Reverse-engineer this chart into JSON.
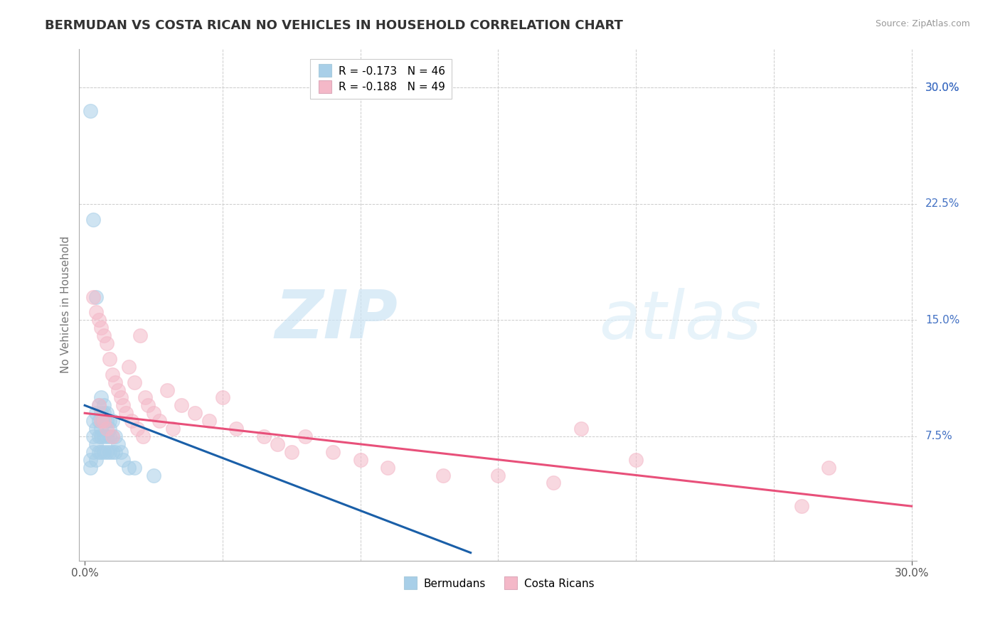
{
  "title": "BERMUDAN VS COSTA RICAN NO VEHICLES IN HOUSEHOLD CORRELATION CHART",
  "source": "Source: ZipAtlas.com",
  "ylabel": "No Vehicles in Household",
  "right_yticks": [
    "30.0%",
    "22.5%",
    "15.0%",
    "7.5%"
  ],
  "right_ytick_vals": [
    0.3,
    0.225,
    0.15,
    0.075
  ],
  "xlim": [
    0.0,
    0.3
  ],
  "ylim": [
    0.0,
    0.32
  ],
  "legend_r_blue": "R = -0.173",
  "legend_n_blue": "N = 46",
  "legend_r_pink": "R = -0.188",
  "legend_n_pink": "N = 49",
  "legend_label_blue": "Bermudans",
  "legend_label_pink": "Costa Ricans",
  "color_blue": "#a8cfe8",
  "color_pink": "#f4b8c8",
  "color_blue_line": "#1a5fa8",
  "color_pink_line": "#e8507a",
  "watermark_zip": "ZIP",
  "watermark_atlas": "atlas",
  "blue_line_x0": 0.0,
  "blue_line_y0": 0.095,
  "blue_line_x1": 0.14,
  "blue_line_y1": 0.0,
  "pink_line_x0": 0.0,
  "pink_line_y0": 0.09,
  "pink_line_x1": 0.3,
  "pink_line_y1": 0.03,
  "blue_scatter_x": [
    0.002,
    0.002,
    0.002,
    0.003,
    0.003,
    0.003,
    0.003,
    0.004,
    0.004,
    0.004,
    0.004,
    0.004,
    0.005,
    0.005,
    0.005,
    0.005,
    0.006,
    0.006,
    0.006,
    0.006,
    0.006,
    0.006,
    0.007,
    0.007,
    0.007,
    0.007,
    0.007,
    0.008,
    0.008,
    0.008,
    0.008,
    0.009,
    0.009,
    0.009,
    0.009,
    0.01,
    0.01,
    0.01,
    0.011,
    0.011,
    0.012,
    0.013,
    0.014,
    0.016,
    0.018,
    0.025
  ],
  "blue_scatter_y": [
    0.285,
    0.06,
    0.055,
    0.215,
    0.085,
    0.075,
    0.065,
    0.165,
    0.09,
    0.08,
    0.07,
    0.06,
    0.095,
    0.085,
    0.075,
    0.065,
    0.1,
    0.09,
    0.085,
    0.08,
    0.075,
    0.065,
    0.095,
    0.09,
    0.085,
    0.075,
    0.065,
    0.09,
    0.085,
    0.075,
    0.065,
    0.085,
    0.08,
    0.075,
    0.065,
    0.085,
    0.075,
    0.065,
    0.075,
    0.065,
    0.07,
    0.065,
    0.06,
    0.055,
    0.055,
    0.05
  ],
  "pink_scatter_x": [
    0.003,
    0.004,
    0.005,
    0.005,
    0.006,
    0.006,
    0.007,
    0.007,
    0.008,
    0.008,
    0.009,
    0.01,
    0.01,
    0.011,
    0.012,
    0.013,
    0.014,
    0.015,
    0.016,
    0.017,
    0.018,
    0.019,
    0.02,
    0.021,
    0.022,
    0.023,
    0.025,
    0.027,
    0.03,
    0.032,
    0.035,
    0.04,
    0.045,
    0.05,
    0.055,
    0.065,
    0.07,
    0.075,
    0.08,
    0.09,
    0.1,
    0.11,
    0.13,
    0.15,
    0.17,
    0.18,
    0.2,
    0.26,
    0.27
  ],
  "pink_scatter_y": [
    0.165,
    0.155,
    0.15,
    0.095,
    0.145,
    0.085,
    0.14,
    0.085,
    0.135,
    0.08,
    0.125,
    0.115,
    0.075,
    0.11,
    0.105,
    0.1,
    0.095,
    0.09,
    0.12,
    0.085,
    0.11,
    0.08,
    0.14,
    0.075,
    0.1,
    0.095,
    0.09,
    0.085,
    0.105,
    0.08,
    0.095,
    0.09,
    0.085,
    0.1,
    0.08,
    0.075,
    0.07,
    0.065,
    0.075,
    0.065,
    0.06,
    0.055,
    0.05,
    0.05,
    0.045,
    0.08,
    0.06,
    0.03,
    0.055
  ]
}
